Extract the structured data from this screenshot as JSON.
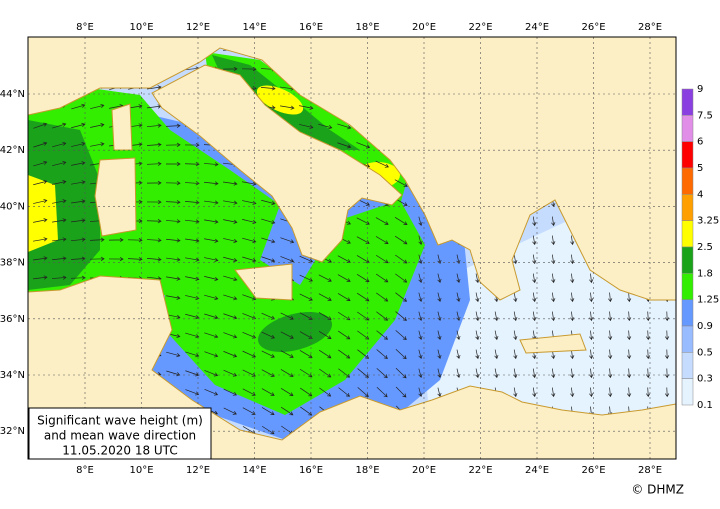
{
  "map": {
    "x_labels": [
      "8°E",
      "10°E",
      "12°E",
      "14°E",
      "16°E",
      "18°E",
      "20°E",
      "22°E",
      "24°E",
      "26°E",
      "28°E"
    ],
    "y_labels": [
      "44°N",
      "42°N",
      "40°N",
      "38°N",
      "36°N",
      "34°N",
      "32°N"
    ],
    "legend": {
      "labels": [
        "9",
        "7.5",
        "6",
        "5",
        "4",
        "3.25",
        "2.5",
        "1.8",
        "1.25",
        "0.9",
        "0.5",
        "0.3",
        "0.1"
      ]
    },
    "caption": [
      "Significant wave height (m)",
      "and mean wave direction",
      "11.05.2020 18  UTC"
    ],
    "credit": "© DHMZ"
  }
}
